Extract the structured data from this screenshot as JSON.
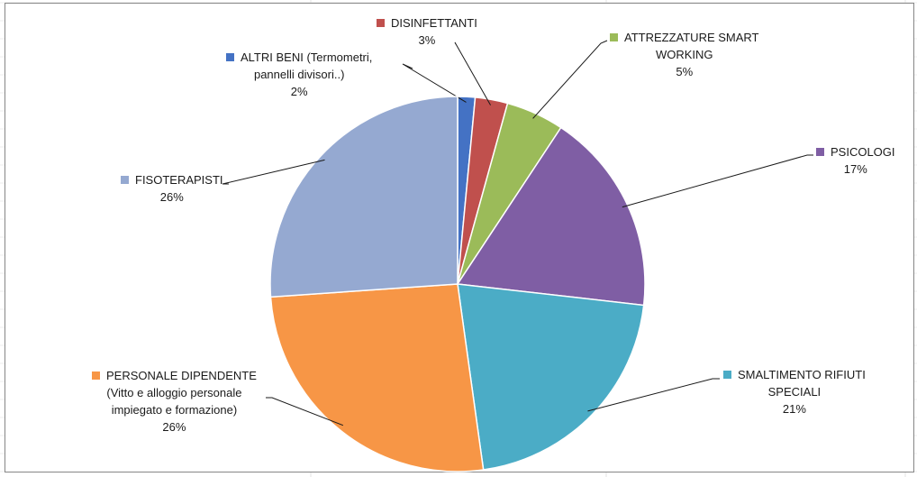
{
  "chart_data": {
    "type": "pie",
    "start_angle_deg": 0,
    "slices": [
      {
        "key": "altri",
        "label_lines": [
          "ALTRI BENI (Termometri,",
          "pannelli divisori..)"
        ],
        "percent_label": "2%",
        "value": 1.5,
        "color": "#4472C4"
      },
      {
        "key": "disinf",
        "label_lines": [
          "DISINFETTANTI"
        ],
        "percent_label": "3%",
        "value": 2.8,
        "color": "#C0504D"
      },
      {
        "key": "attrez",
        "label_lines": [
          "ATTREZZATURE SMART",
          "WORKING"
        ],
        "percent_label": "5%",
        "value": 5.0,
        "color": "#9BBB59"
      },
      {
        "key": "psico",
        "label_lines": [
          "PSICOLOGI"
        ],
        "percent_label": "17%",
        "value": 17.5,
        "color": "#7F5EA4"
      },
      {
        "key": "smalt",
        "label_lines": [
          "SMALTIMENTO RIFIUTI",
          "SPECIALI"
        ],
        "percent_label": "21%",
        "value": 21.0,
        "color": "#4BACC6"
      },
      {
        "key": "pers",
        "label_lines": [
          "PERSONALE DIPENDENTE",
          "(Vitto e alloggio personale",
          "impiegato e formazione)"
        ],
        "percent_label": "26%",
        "value": 26.1,
        "color": "#F79646"
      },
      {
        "key": "fisio",
        "label_lines": [
          "FISOTERAPISTI"
        ],
        "percent_label": "26%",
        "value": 26.1,
        "color": "#95A9D1"
      }
    ]
  }
}
